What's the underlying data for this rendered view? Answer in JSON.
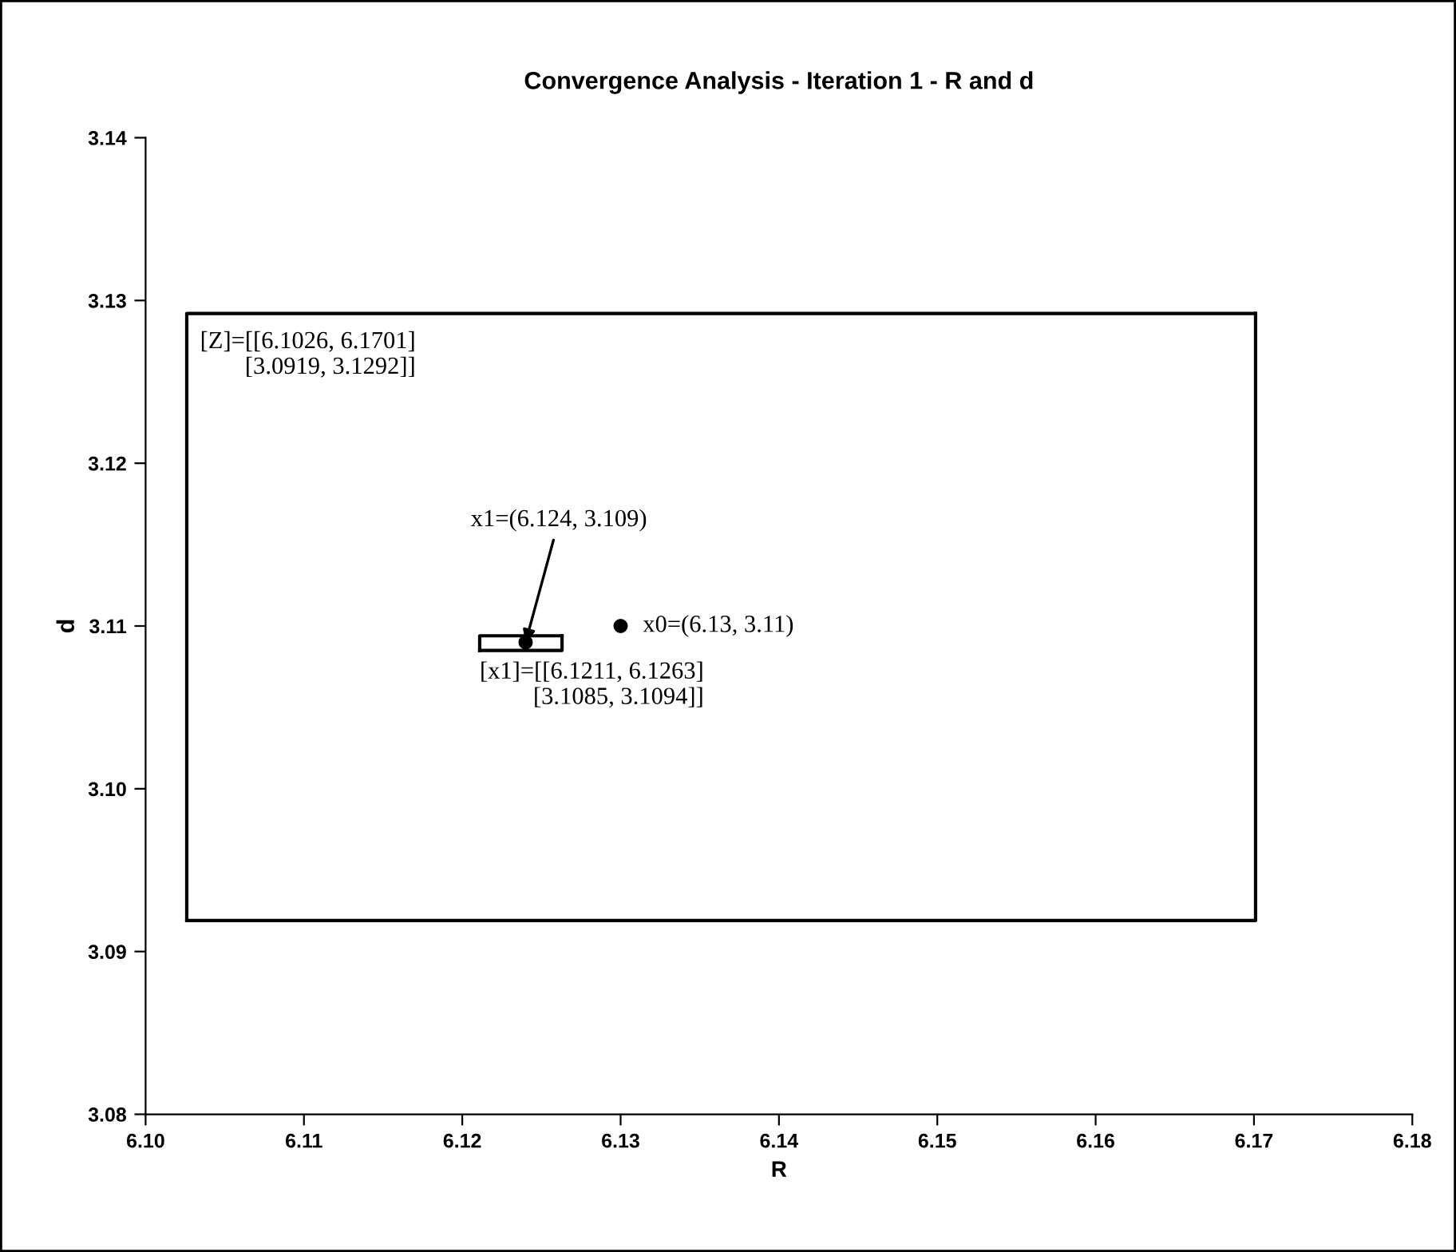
{
  "chart_data": {
    "type": "scatter",
    "title": "Convergence Analysis - Iteration 1 - R and d",
    "xlabel": "R",
    "ylabel": "d",
    "series": [
      {
        "type": "line",
        "marker": "none",
        "color": "#000000",
        "x": [
          6.1026,
          6.1701,
          6.1701
        ],
        "values": [
          3.0919,
          3.0919,
          3.1292
        ]
      },
      {
        "type": "line",
        "marker": "none",
        "color": "#000000",
        "x": [
          6.1026,
          6.1026,
          6.1701
        ],
        "values": [
          3.0919,
          3.1292,
          3.1292
        ]
      },
      {
        "type": "line",
        "marker": "none",
        "color": "#000000",
        "x": [
          6.1211,
          6.1263,
          6.1263
        ],
        "values": [
          3.1085,
          3.1085,
          3.1094
        ]
      },
      {
        "type": "line",
        "marker": "none",
        "color": "#000000",
        "x": [
          6.1211,
          6.1211,
          6.1263
        ],
        "values": [
          3.1085,
          3.1094,
          3.1094
        ]
      },
      {
        "color": "#000000",
        "x": [
          6.13,
          6.124
        ],
        "values": [
          3.11,
          3.109
        ]
      }
    ],
    "marker": "circle",
    "grid": false,
    "xlim": [
      6.1,
      6.18
    ],
    "xticks": [
      {
        "value": 6.1,
        "label": "6.10"
      },
      {
        "value": 6.11,
        "label": "6.11"
      },
      {
        "value": 6.12,
        "label": "6.12"
      },
      {
        "value": 6.13,
        "label": "6.13"
      },
      {
        "value": 6.14,
        "label": "6.14"
      },
      {
        "value": 6.15,
        "label": "6.15"
      },
      {
        "value": 6.16,
        "label": "6.16"
      },
      {
        "value": 6.17,
        "label": "6.17"
      },
      {
        "value": 6.18,
        "label": "6.18"
      }
    ],
    "ylim": [
      3.08,
      3.14
    ],
    "yticks": [
      {
        "value": 3.08,
        "label": "3.08"
      },
      {
        "value": 3.09,
        "label": "3.09"
      },
      {
        "value": 3.1,
        "label": "3.10"
      },
      {
        "value": 3.11,
        "label": "3.11"
      },
      {
        "value": 3.12,
        "label": "3.12"
      },
      {
        "value": 3.13,
        "label": "3.13"
      },
      {
        "value": 3.14,
        "label": "3.14"
      }
    ],
    "annotations": [
      {
        "text": "[Z]=[[6.1026, 6.1701]\n[3.0919, 3.1292]]",
        "x": 6.1026,
        "y": 3.1292
      },
      {
        "text": "x0=(6.13, 3.11)",
        "x": 6.13,
        "y": 3.11
      },
      {
        "text": "x1=(6.124, 3.109)",
        "x": 6.124,
        "y": 3.109
      },
      {
        "text": "[x1]=[[6.1211, 6.1263]\n[3.1085, 3.1094]]",
        "x": 6.1211,
        "y": 3.1085
      }
    ]
  }
}
